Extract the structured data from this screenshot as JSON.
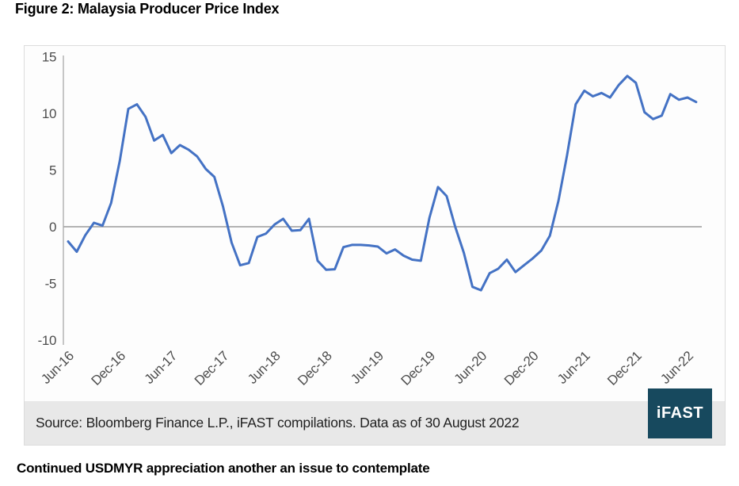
{
  "page": {
    "figure_title": "Figure 2: Malaysia Producer Price Index",
    "footer_heading": "Continued USDMYR appreciation another an issue to contemplate"
  },
  "chart": {
    "source_text": "Source: Bloomberg Finance L.P., iFAST compilations. Data as of 30 August 2022",
    "logo_text": "iFAST",
    "colors": {
      "line": "#4472C4",
      "logo_bg": "#17495E",
      "band_bg": "#E8E8E8",
      "axis_label": "#4D4D4D",
      "zero_line": "#A8A8A8",
      "axis_line": "#C6C6C6",
      "frame_border": "#DCDCDC",
      "plot_bg": "#FDFDFD"
    }
  },
  "chart_data": {
    "type": "line",
    "title": "Figure 2: Malaysia Producer Price Index",
    "xlabel": "",
    "ylabel": "",
    "ylim": [
      -10,
      15
    ],
    "y_ticks": [
      15,
      10,
      5,
      0,
      -5,
      -10
    ],
    "grid": "zero-line-only",
    "legend": "none",
    "x": [
      "Jun-16",
      "Jul-16",
      "Aug-16",
      "Sep-16",
      "Oct-16",
      "Nov-16",
      "Dec-16",
      "Jan-17",
      "Feb-17",
      "Mar-17",
      "Apr-17",
      "May-17",
      "Jun-17",
      "Jul-17",
      "Aug-17",
      "Sep-17",
      "Oct-17",
      "Nov-17",
      "Dec-17",
      "Jan-18",
      "Feb-18",
      "Mar-18",
      "Apr-18",
      "May-18",
      "Jun-18",
      "Jul-18",
      "Aug-18",
      "Sep-18",
      "Oct-18",
      "Nov-18",
      "Dec-18",
      "Jan-19",
      "Feb-19",
      "Mar-19",
      "Apr-19",
      "May-19",
      "Jun-19",
      "Jul-19",
      "Aug-19",
      "Sep-19",
      "Oct-19",
      "Nov-19",
      "Dec-19",
      "Jan-20",
      "Feb-20",
      "Mar-20",
      "Apr-20",
      "May-20",
      "Jun-20",
      "Jul-20",
      "Aug-20",
      "Sep-20",
      "Oct-20",
      "Nov-20",
      "Dec-20",
      "Jan-21",
      "Feb-21",
      "Mar-21",
      "Apr-21",
      "May-21",
      "Jun-21",
      "Jul-21",
      "Aug-21",
      "Sep-21",
      "Oct-21",
      "Nov-21",
      "Dec-21",
      "Jan-22",
      "Feb-22",
      "Mar-22",
      "Apr-22",
      "May-22",
      "Jun-22",
      "Jul-22"
    ],
    "x_tick_labels": [
      "Jun-16",
      "Dec-16",
      "Jun-17",
      "Dec-17",
      "Jun-18",
      "Dec-18",
      "Jun-19",
      "Dec-19",
      "Jun-20",
      "Dec-20",
      "Jun-21",
      "Dec-21",
      "Jun-22"
    ],
    "x_tick_every": 6,
    "series": [
      {
        "name": "Malaysia Producer Price Index (YoY %)",
        "values": [
          -1.3,
          -2.2,
          -0.75,
          0.35,
          0.1,
          2.1,
          5.8,
          10.4,
          10.8,
          9.7,
          7.6,
          8.1,
          6.5,
          7.2,
          6.8,
          6.2,
          5.1,
          4.4,
          1.8,
          -1.4,
          -3.4,
          -3.2,
          -0.9,
          -0.6,
          0.2,
          0.7,
          -0.35,
          -0.3,
          0.7,
          -3.0,
          -3.8,
          -3.75,
          -1.8,
          -1.6,
          -1.6,
          -1.65,
          -1.75,
          -2.35,
          -2.0,
          -2.55,
          -2.9,
          -3.0,
          0.8,
          3.5,
          2.7,
          0.0,
          -2.3,
          -5.3,
          -5.6,
          -4.1,
          -3.7,
          -2.9,
          -4.0,
          -3.4,
          -2.8,
          -2.1,
          -0.8,
          2.3,
          6.3,
          10.8,
          12.0,
          11.5,
          11.8,
          11.4,
          12.5,
          13.3,
          12.7,
          10.1,
          9.5,
          9.8,
          11.7,
          11.2,
          11.4,
          11.0
        ]
      }
    ]
  }
}
